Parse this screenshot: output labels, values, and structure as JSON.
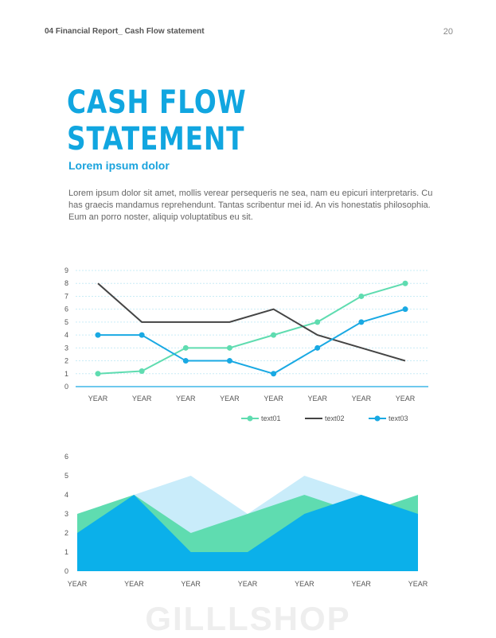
{
  "header": {
    "left": "04 Financial  Report_ Cash Flow statement",
    "page_number": "20"
  },
  "title": "CASH FLOW STATEMENT",
  "subtitle": "Lorem ipsum dolor",
  "body": "Lorem ipsum dolor sit amet, mollis verear persequeris ne sea, nam eu epicuri interpretaris. Cu has graecis mandamus reprehendunt. Tantas scribentur mei id. An vis honestatis philosophia. Eum an porro noster, aliquip voluptatibus eu sit.",
  "watermark": "GILLLSHOP",
  "chart_data": [
    {
      "type": "line",
      "categories": [
        "YEAR",
        "YEAR",
        "YEAR",
        "YEAR",
        "YEAR",
        "YEAR",
        "YEAR",
        "YEAR"
      ],
      "ylim": [
        0,
        9
      ],
      "yticks": [
        0,
        1,
        2,
        3,
        4,
        5,
        6,
        7,
        8,
        9
      ],
      "grid": true,
      "legend_position": "bottom-right",
      "series": [
        {
          "name": "text01",
          "values": [
            1,
            1.2,
            3,
            3,
            4,
            5,
            7,
            8
          ],
          "color": "#5fdcb0",
          "markers": true
        },
        {
          "name": "text02",
          "values": [
            8,
            5,
            5,
            5,
            6,
            4,
            3,
            2
          ],
          "color": "#444444",
          "markers": false
        },
        {
          "name": "text03",
          "values": [
            4,
            4,
            2,
            2,
            1,
            3,
            5,
            6
          ],
          "color": "#19a9e3",
          "markers": true
        }
      ]
    },
    {
      "type": "area",
      "categories": [
        "YEAR",
        "YEAR",
        "YEAR",
        "YEAR",
        "YEAR",
        "YEAR",
        "YEAR"
      ],
      "ylim": [
        0,
        6
      ],
      "yticks": [
        0,
        1,
        2,
        3,
        4,
        5,
        6
      ],
      "grid": false,
      "series": [
        {
          "values": [
            3,
            4,
            5,
            3,
            5,
            4,
            3
          ],
          "color": "#c9ecfa"
        },
        {
          "values": [
            3,
            4,
            2,
            3,
            4,
            3,
            4
          ],
          "color": "#5fdcb0"
        },
        {
          "values": [
            2,
            4,
            1,
            1,
            3,
            4,
            3
          ],
          "color": "#0bb0ea"
        }
      ]
    }
  ]
}
